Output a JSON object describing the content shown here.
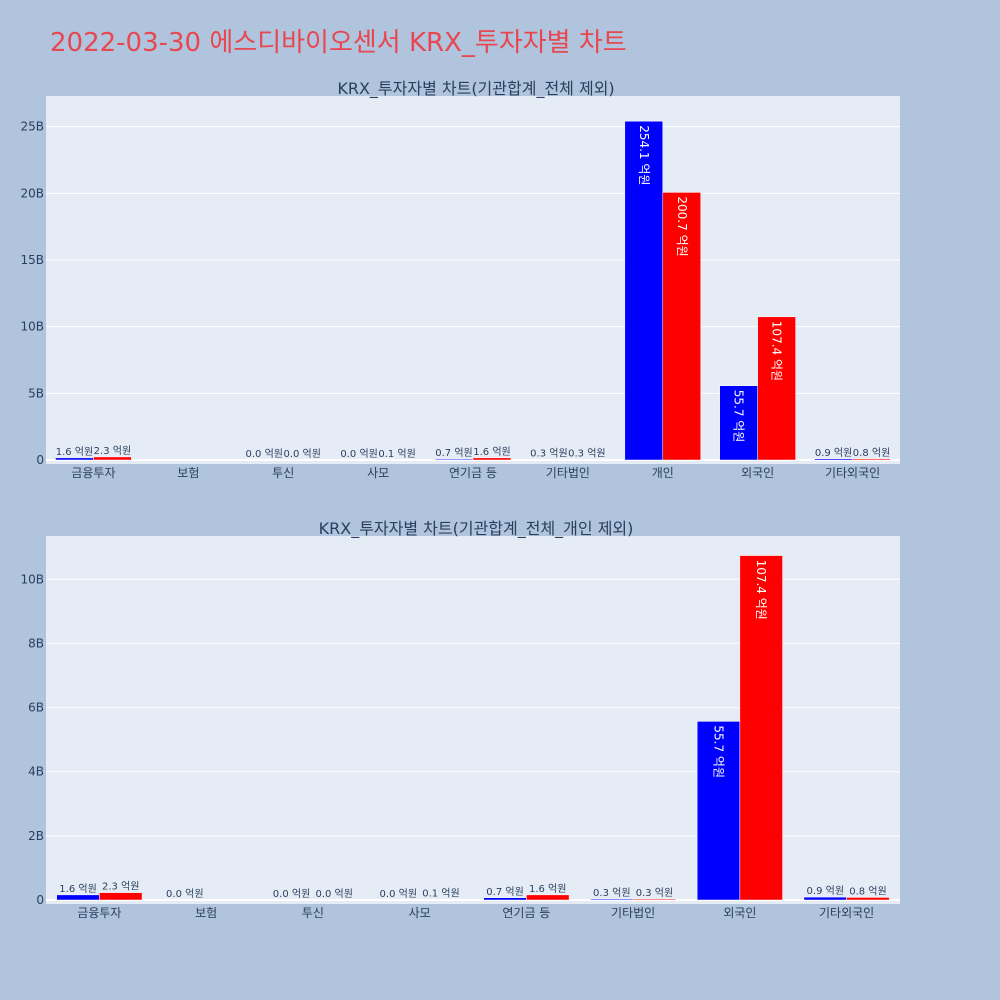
{
  "page": {
    "title": "2022-03-30 에스디바이오센서 KRX_투자자별 차트"
  },
  "colors": {
    "buy": "#0000ff",
    "sell": "#ff0000",
    "plot_bg": "#e5ecf6",
    "page_bg": "#b0c4de",
    "title": "#e8474f"
  },
  "chart_data": [
    {
      "type": "bar",
      "title": "KRX_투자자별 차트(기관합계_전체 제외)",
      "categories": [
        "금융투자",
        "보험",
        "투신",
        "사모",
        "연기금 등",
        "기타법인",
        "개인",
        "외국인",
        "기타외국인"
      ],
      "series": [
        {
          "values": [
            0.16,
            null,
            0.0,
            0.0,
            0.07,
            0.03,
            25.41,
            5.57,
            0.09
          ],
          "labels": [
            "1.6 억원",
            "",
            "0.0 억원",
            "0.0 억원",
            "0.7 억원",
            "0.3 억원",
            "254.1 억원",
            "55.7 억원",
            "0.9 억원"
          ]
        },
        {
          "values": [
            0.23,
            null,
            0.0,
            0.01,
            0.16,
            0.03,
            20.07,
            10.74,
            0.08
          ],
          "labels": [
            "2.3 억원",
            "",
            "0.0 억원",
            "0.1 억원",
            "1.6 억원",
            "0.3 억원",
            "200.7 억원",
            "107.4 억원",
            "0.8 억원"
          ]
        }
      ],
      "y_unit": "B",
      "yticks": [
        0,
        5,
        10,
        15,
        20,
        25
      ],
      "ytick_labels": [
        "0",
        "5B",
        "10B",
        "15B",
        "20B",
        "25B"
      ],
      "ylim": [
        0,
        27.3
      ],
      "grid": true
    },
    {
      "type": "bar",
      "title": "KRX_투자자별 차트(기관합계_전체_개인 제외)",
      "categories": [
        "금융투자",
        "보험",
        "투신",
        "사모",
        "연기금 등",
        "기타법인",
        "외국인",
        "기타외국인"
      ],
      "series": [
        {
          "values": [
            0.16,
            0.0,
            0.0,
            0.0,
            0.07,
            0.03,
            5.57,
            0.09
          ],
          "labels": [
            "1.6 억원",
            "0.0 억원",
            "0.0 억원",
            "0.0 억원",
            "0.7 억원",
            "0.3 억원",
            "55.7 억원",
            "0.9 억원"
          ]
        },
        {
          "values": [
            0.23,
            null,
            0.0,
            0.01,
            0.16,
            0.03,
            10.74,
            0.08
          ],
          "labels": [
            "2.3 억원",
            "",
            "0.0 억원",
            "0.1 억원",
            "1.6 억원",
            "0.3 억원",
            "107.4 억원",
            "0.8 억원"
          ]
        }
      ],
      "y_unit": "B",
      "yticks": [
        0,
        2,
        4,
        6,
        8,
        10
      ],
      "ytick_labels": [
        "0",
        "2B",
        "4B",
        "6B",
        "8B",
        "10B"
      ],
      "ylim": [
        0,
        11.35
      ],
      "grid": true
    }
  ]
}
